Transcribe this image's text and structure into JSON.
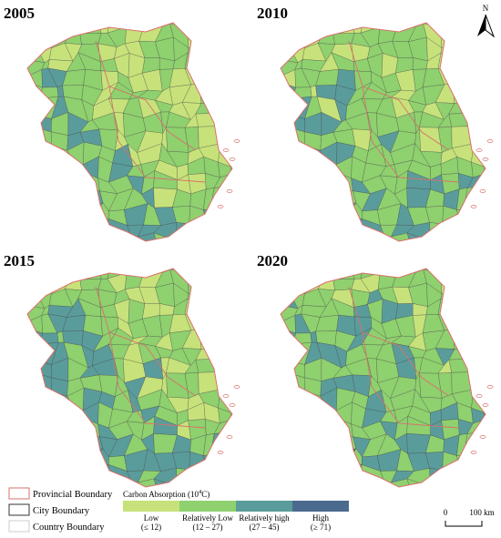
{
  "panels": [
    {
      "year": "2005"
    },
    {
      "year": "2010"
    },
    {
      "year": "2015"
    },
    {
      "year": "2020"
    }
  ],
  "north": "N",
  "boundary_legend": [
    "Provincial Boundary",
    "City Boundary",
    "Country Boundary"
  ],
  "legend": {
    "title_parts": [
      "Carbon Absorption (10",
      "4",
      "C)"
    ],
    "classes": [
      {
        "label": "Low",
        "range": "(≤ 12)",
        "color": "#c7e27a"
      },
      {
        "label": "Relatively Low",
        "range": "(12 – 27)",
        "color": "#8fd06f"
      },
      {
        "label": "Relatively high",
        "range": "(27 – 45)",
        "color": "#5a9c9b"
      },
      {
        "label": "High",
        "range": "(≥ 71)",
        "color": "#4b6b8e"
      }
    ]
  },
  "scale_bar": {
    "start": "0",
    "end": "100 km"
  }
}
